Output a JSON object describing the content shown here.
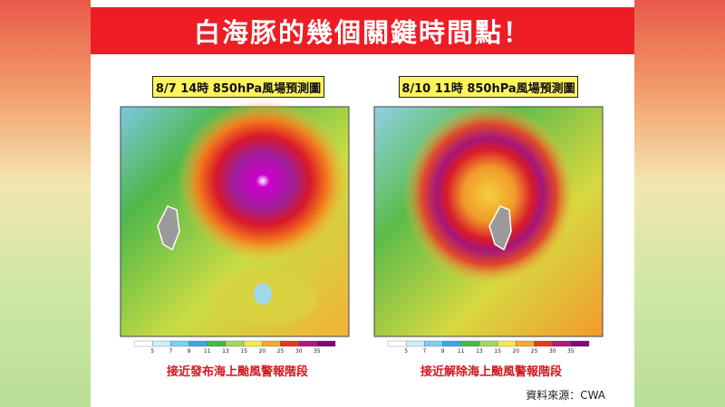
{
  "header": {
    "title": "白海豚的幾個關鍵時間點！"
  },
  "panels": [
    {
      "label": "8/7 14時 850hPa風場預測圖",
      "caption": "接近發布海上颱風警報階段",
      "colorbar": {
        "ticks": [
          5,
          7,
          9,
          11,
          13,
          15,
          20,
          25,
          30,
          35
        ]
      }
    },
    {
      "label": "8/10 11時 850hPa風場預測圖",
      "caption": "接近解除海上颱風警報階段",
      "colorbar": {
        "ticks": [
          5,
          7,
          9,
          11,
          13,
          15,
          20,
          25,
          30,
          35
        ]
      }
    }
  ],
  "source": "資料來源：CWA"
}
